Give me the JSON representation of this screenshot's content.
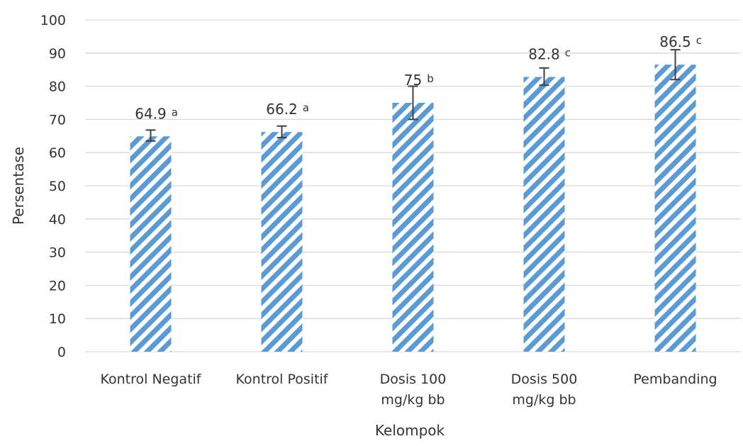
{
  "chart_data": {
    "type": "bar",
    "title": "",
    "xlabel": "Kelompok",
    "ylabel": "Persentase",
    "ylim": [
      0,
      100
    ],
    "yticks": [
      0,
      10,
      20,
      30,
      40,
      50,
      60,
      70,
      80,
      90,
      100
    ],
    "grid": true,
    "legend": "none",
    "categories": [
      [
        "Kontrol Negatif"
      ],
      [
        "Kontrol Positif"
      ],
      [
        "Dosis 100",
        "mg/kg bb"
      ],
      [
        "Dosis 500",
        "mg/kg bb"
      ],
      [
        "Pembanding"
      ]
    ],
    "values": [
      64.9,
      66.2,
      75,
      82.8,
      86.5
    ],
    "value_labels": [
      "64.9",
      "66.2",
      "75",
      "82.8",
      "86.5"
    ],
    "error_bars": [
      {
        "low": 63.5,
        "high": 66.8
      },
      {
        "low": 64.5,
        "high": 68.0
      },
      {
        "low": 70.0,
        "high": 80.0
      },
      {
        "low": 80.3,
        "high": 85.5
      },
      {
        "low": 82.0,
        "high": 91.0
      }
    ],
    "significance_letters": [
      "a",
      "a",
      "b",
      "c",
      "c"
    ],
    "bar_color": "#5b9bd5",
    "bar_pattern": "diagonal-stripes",
    "grid_color": "#d9d9d9",
    "text_color": "#333333"
  }
}
